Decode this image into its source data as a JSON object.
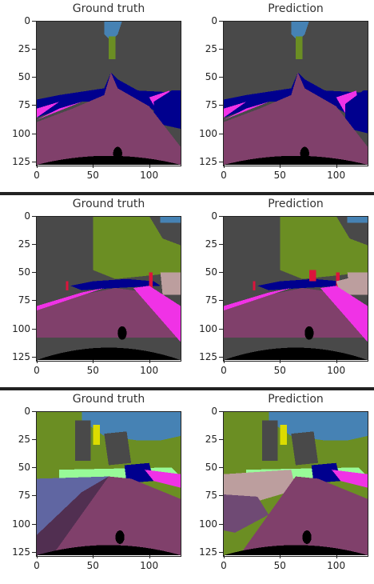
{
  "colors": {
    "sky": "#4682b4",
    "building": "#494949",
    "vegetation": "#6b8e23",
    "road": "#80406b",
    "sidewalk": "#f032e6",
    "car": "#00008e",
    "ego_vehicle": "#000000",
    "pole": "#999999",
    "traffic_light": "#fab01e",
    "traffic_sign": "#dcdc00",
    "person": "#dc143c",
    "terrain": "#98fb98",
    "parking": "#6f4a74",
    "ground": "#512f51",
    "wall": "#bc9e9e",
    "lane": "#6066a2"
  },
  "rows": [
    {
      "panels": [
        {
          "title": "Ground truth",
          "variant": "gt"
        },
        {
          "title": "Prediction",
          "variant": "pred"
        }
      ]
    },
    {
      "panels": [
        {
          "title": "Ground truth",
          "variant": "gt"
        },
        {
          "title": "Prediction",
          "variant": "pred"
        }
      ]
    },
    {
      "panels": [
        {
          "title": "Ground truth",
          "variant": "gt"
        },
        {
          "title": "Prediction",
          "variant": "pred"
        }
      ]
    }
  ],
  "axes": {
    "yticks": [
      "0",
      "25",
      "50",
      "75",
      "100",
      "125"
    ],
    "xticks": [
      "0",
      "50",
      "100"
    ],
    "ytick_values": [
      0,
      25,
      50,
      75,
      100,
      125
    ],
    "xtick_values": [
      0,
      50,
      100
    ],
    "range": [
      0,
      127
    ]
  }
}
